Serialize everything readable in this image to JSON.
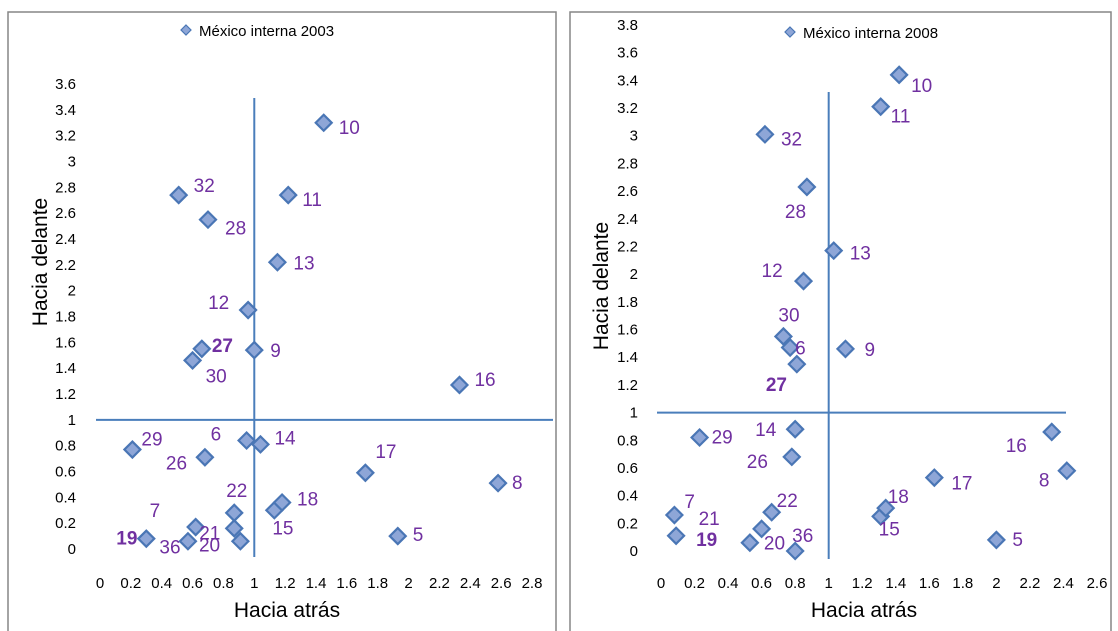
{
  "colors": {
    "marker_fill": "#8ea6d7",
    "marker_stroke": "#4a76b5",
    "reference_line": "#4a7ebb",
    "point_label": "#7030a0"
  },
  "chart_data": [
    {
      "type": "scatter",
      "legend": "México interna 2003",
      "legend_position": "top",
      "xlabel": "Hacia atrás",
      "ylabel": "Hacia delante",
      "xlim": [
        0,
        2.8
      ],
      "ylim": [
        0,
        3.6
      ],
      "x_ticks": [
        "0",
        "0.2",
        "0.4",
        "0.6",
        "0.8",
        "1",
        "1.2",
        "1.4",
        "1.6",
        "1.8",
        "2",
        "2.2",
        "2.4",
        "2.6",
        "2.8"
      ],
      "y_ticks": [
        "0",
        "0.2",
        "0.4",
        "0.6",
        "0.8",
        "1",
        "1.2",
        "1.4",
        "1.6",
        "1.8",
        "2",
        "2.2",
        "2.4",
        "2.6",
        "2.8",
        "3",
        "3.2",
        "3.4",
        "3.6"
      ],
      "grid": false,
      "reference_lines": {
        "x": 1,
        "y": 1
      },
      "points": [
        {
          "label": "5",
          "x": 1.93,
          "y": 0.1
        },
        {
          "label": "6",
          "x": 0.95,
          "y": 0.84
        },
        {
          "label": "7",
          "x": 0.62,
          "y": 0.17
        },
        {
          "label": "8",
          "x": 2.58,
          "y": 0.51
        },
        {
          "label": "9",
          "x": 1.0,
          "y": 1.54
        },
        {
          "label": "10",
          "x": 1.45,
          "y": 3.3
        },
        {
          "label": "11",
          "x": 1.22,
          "y": 2.74
        },
        {
          "label": "12",
          "x": 0.96,
          "y": 1.85
        },
        {
          "label": "13",
          "x": 1.15,
          "y": 2.22
        },
        {
          "label": "14",
          "x": 1.04,
          "y": 0.81
        },
        {
          "label": "15",
          "x": 1.13,
          "y": 0.3
        },
        {
          "label": "16",
          "x": 2.33,
          "y": 1.27
        },
        {
          "label": "17",
          "x": 1.72,
          "y": 0.59
        },
        {
          "label": "18",
          "x": 1.18,
          "y": 0.36
        },
        {
          "label": "19",
          "x": 0.3,
          "y": 0.08
        },
        {
          "label": "20",
          "x": 0.57,
          "y": 0.06
        },
        {
          "label": "21",
          "x": 0.87,
          "y": 0.16
        },
        {
          "label": "22",
          "x": 0.87,
          "y": 0.28
        },
        {
          "label": "26",
          "x": 0.68,
          "y": 0.71
        },
        {
          "label": "27",
          "x": 0.66,
          "y": 1.55
        },
        {
          "label": "28",
          "x": 0.7,
          "y": 2.55
        },
        {
          "label": "29",
          "x": 0.21,
          "y": 0.77
        },
        {
          "label": "30",
          "x": 0.6,
          "y": 1.46
        },
        {
          "label": "32",
          "x": 0.51,
          "y": 2.74
        },
        {
          "label": "36",
          "x": 0.91,
          "y": 0.06
        }
      ]
    },
    {
      "type": "scatter",
      "legend": "México interna 2008",
      "legend_position": "top",
      "xlabel": "Hacia atrás",
      "ylabel": "Hacia delante",
      "xlim": [
        0,
        2.6
      ],
      "ylim": [
        0,
        3.8
      ],
      "x_ticks": [
        "0",
        "0.2",
        "0.4",
        "0.6",
        "0.8",
        "1",
        "1.2",
        "1.4",
        "1.6",
        "1.8",
        "2",
        "2.2",
        "2.4",
        "2.6"
      ],
      "y_ticks": [
        "0",
        "0.2",
        "0.4",
        "0.6",
        "0.8",
        "1",
        "1.2",
        "1.4",
        "1.6",
        "1.8",
        "2",
        "2.2",
        "2.4",
        "2.6",
        "2.8",
        "3",
        "3.2",
        "3.4",
        "3.6",
        "3.8"
      ],
      "grid": false,
      "reference_lines": {
        "x": 1,
        "y": 1
      },
      "points": [
        {
          "label": "5",
          "x": 2.0,
          "y": 0.08
        },
        {
          "label": "6",
          "x": 0.77,
          "y": 1.47
        },
        {
          "label": "7",
          "x": 0.08,
          "y": 0.26
        },
        {
          "label": "8",
          "x": 2.42,
          "y": 0.58
        },
        {
          "label": "9",
          "x": 1.1,
          "y": 1.46
        },
        {
          "label": "10",
          "x": 1.42,
          "y": 3.44
        },
        {
          "label": "11",
          "x": 1.31,
          "y": 3.21
        },
        {
          "label": "12",
          "x": 0.85,
          "y": 1.95
        },
        {
          "label": "13",
          "x": 1.03,
          "y": 2.17
        },
        {
          "label": "14",
          "x": 0.8,
          "y": 0.88
        },
        {
          "label": "15",
          "x": 1.31,
          "y": 0.25
        },
        {
          "label": "16",
          "x": 2.33,
          "y": 0.86
        },
        {
          "label": "17",
          "x": 1.63,
          "y": 0.53
        },
        {
          "label": "18",
          "x": 1.34,
          "y": 0.31
        },
        {
          "label": "19",
          "x": 0.09,
          "y": 0.11
        },
        {
          "label": "20",
          "x": 0.53,
          "y": 0.06
        },
        {
          "label": "21",
          "x": 0.6,
          "y": 0.16
        },
        {
          "label": "22",
          "x": 0.66,
          "y": 0.28
        },
        {
          "label": "26",
          "x": 0.78,
          "y": 0.68
        },
        {
          "label": "27",
          "x": 0.81,
          "y": 1.35
        },
        {
          "label": "28",
          "x": 0.87,
          "y": 2.63
        },
        {
          "label": "29",
          "x": 0.23,
          "y": 0.82
        },
        {
          "label": "30",
          "x": 0.73,
          "y": 1.55
        },
        {
          "label": "32",
          "x": 0.62,
          "y": 3.01
        },
        {
          "label": "36",
          "x": 0.8,
          "y": 0.0
        }
      ]
    }
  ]
}
